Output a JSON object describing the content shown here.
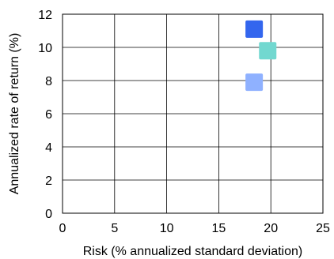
{
  "chart_data": {
    "type": "scatter",
    "title": "",
    "xlabel": "Risk (% annualized standard deviation)",
    "ylabel": "Annualized rate of return (%)",
    "xlim": [
      0,
      25
    ],
    "ylim": [
      0,
      12
    ],
    "xticks": [
      0,
      5,
      10,
      15,
      20,
      25
    ],
    "yticks": [
      0,
      2,
      4,
      6,
      8,
      10,
      12
    ],
    "xtick_labels": [
      "0",
      "5",
      "10",
      "15",
      "20",
      "25"
    ],
    "ytick_labels": [
      "0",
      "2",
      "4",
      "6",
      "8",
      "10",
      "12"
    ],
    "grid": true,
    "marker": "square",
    "points": [
      {
        "x": 18.4,
        "y": 11.1,
        "color": "#3366ee"
      },
      {
        "x": 19.7,
        "y": 9.8,
        "color": "#72d8d0"
      },
      {
        "x": 18.4,
        "y": 7.9,
        "color": "#8fb1ff"
      }
    ]
  }
}
